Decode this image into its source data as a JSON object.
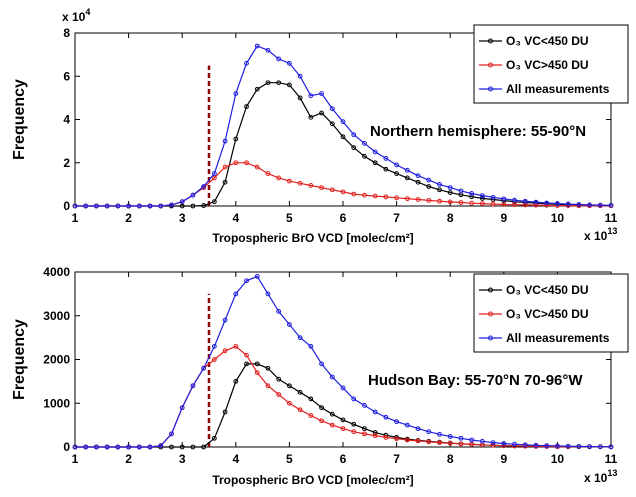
{
  "chart_data": [
    {
      "type": "line",
      "ylabel": "Frequency",
      "xlabel": "Tropospheric BrO VCD [molec/cm²]",
      "x_multiplier_label": "x 10",
      "x_multiplier_exp": "13",
      "y_multiplier_label": "x 10",
      "y_multiplier_exp": "4",
      "xlim": [
        1,
        11
      ],
      "ylim": [
        0,
        8
      ],
      "xticks": [
        1,
        2,
        3,
        4,
        5,
        6,
        7,
        8,
        9,
        10,
        11
      ],
      "yticks": [
        0,
        2,
        4,
        6,
        8
      ],
      "annotation": "Northern hemisphere: 55-90°N",
      "threshold_x": 3.5,
      "threshold_y_top": 6.5,
      "legend_position": "top-right",
      "x": [
        1.0,
        1.2,
        1.4,
        1.6,
        1.8,
        2.0,
        2.2,
        2.4,
        2.6,
        2.8,
        3.0,
        3.2,
        3.4,
        3.6,
        3.8,
        4.0,
        4.2,
        4.4,
        4.6,
        4.8,
        5.0,
        5.2,
        5.4,
        5.6,
        5.8,
        6.0,
        6.2,
        6.4,
        6.6,
        6.8,
        7.0,
        7.2,
        7.4,
        7.6,
        7.8,
        8.0,
        8.2,
        8.4,
        8.6,
        8.8,
        9.0,
        9.2,
        9.4,
        9.6,
        9.8,
        10.0,
        10.2,
        10.4,
        10.6,
        10.8,
        11.0
      ],
      "series": [
        {
          "name": "O₃ VC<450 DU",
          "color": "#000000",
          "values": [
            0,
            0,
            0,
            0,
            0,
            0,
            0,
            0,
            0,
            0,
            0,
            0,
            0.02,
            0.2,
            1.1,
            3.1,
            4.6,
            5.4,
            5.7,
            5.7,
            5.6,
            5.0,
            4.1,
            4.3,
            3.8,
            3.2,
            2.7,
            2.3,
            2.0,
            1.7,
            1.5,
            1.3,
            1.1,
            0.9,
            0.75,
            0.62,
            0.52,
            0.43,
            0.35,
            0.3,
            0.25,
            0.2,
            0.16,
            0.13,
            0.1,
            0.08,
            0.06,
            0.05,
            0.04,
            0.03,
            0.02
          ]
        },
        {
          "name": "O₃ VC>450 DU",
          "color": "#e21f1f",
          "values": [
            0,
            0,
            0,
            0,
            0,
            0,
            0,
            0,
            0,
            0.05,
            0.2,
            0.5,
            0.85,
            1.3,
            1.8,
            2.0,
            2.0,
            1.8,
            1.5,
            1.3,
            1.15,
            1.05,
            0.95,
            0.85,
            0.75,
            0.65,
            0.55,
            0.5,
            0.46,
            0.42,
            0.38,
            0.34,
            0.3,
            0.26,
            0.22,
            0.19,
            0.16,
            0.13,
            0.11,
            0.09,
            0.07,
            0.06,
            0.05,
            0.04,
            0.03,
            0.02,
            0.02,
            0.01,
            0.01,
            0.01,
            0.01
          ]
        },
        {
          "name": "All measurements",
          "color": "#1f1fe2",
          "values": [
            0,
            0,
            0,
            0,
            0,
            0,
            0,
            0,
            0,
            0.05,
            0.2,
            0.5,
            0.9,
            1.5,
            3.0,
            5.2,
            6.6,
            7.4,
            7.2,
            6.8,
            6.6,
            6.0,
            5.1,
            5.2,
            4.5,
            3.9,
            3.3,
            2.9,
            2.5,
            2.2,
            1.9,
            1.65,
            1.4,
            1.2,
            1.0,
            0.85,
            0.7,
            0.58,
            0.48,
            0.4,
            0.33,
            0.27,
            0.22,
            0.18,
            0.14,
            0.11,
            0.09,
            0.07,
            0.05,
            0.04,
            0.03
          ]
        }
      ]
    },
    {
      "type": "line",
      "ylabel": "Frequency",
      "xlabel": "Tropospheric BrO VCD [molec/cm²]",
      "x_multiplier_label": "x 10",
      "x_multiplier_exp": "13",
      "xlim": [
        1,
        11
      ],
      "ylim": [
        0,
        4000
      ],
      "xticks": [
        1,
        2,
        3,
        4,
        5,
        6,
        7,
        8,
        9,
        10,
        11
      ],
      "yticks": [
        0,
        1000,
        2000,
        3000,
        4000
      ],
      "annotation": "Hudson Bay: 55-70°N  70-96°W",
      "threshold_x": 3.5,
      "threshold_y_top": 3500,
      "legend_position": "top-right",
      "x": [
        1.0,
        1.2,
        1.4,
        1.6,
        1.8,
        2.0,
        2.2,
        2.4,
        2.6,
        2.8,
        3.0,
        3.2,
        3.4,
        3.6,
        3.8,
        4.0,
        4.2,
        4.4,
        4.6,
        4.8,
        5.0,
        5.2,
        5.4,
        5.6,
        5.8,
        6.0,
        6.2,
        6.4,
        6.6,
        6.8,
        7.0,
        7.2,
        7.4,
        7.6,
        7.8,
        8.0,
        8.2,
        8.4,
        8.6,
        8.8,
        9.0,
        9.2,
        9.4,
        9.6,
        9.8,
        10.0,
        10.2,
        10.4,
        10.6,
        10.8,
        11.0
      ],
      "series": [
        {
          "name": "O₃ VC<450 DU",
          "color": "#000000",
          "values": [
            0,
            0,
            0,
            0,
            0,
            0,
            0,
            0,
            0,
            0,
            0,
            0,
            0,
            200,
            800,
            1500,
            1900,
            1900,
            1800,
            1550,
            1400,
            1250,
            1100,
            900,
            750,
            620,
            520,
            420,
            330,
            270,
            220,
            180,
            150,
            130,
            110,
            90,
            75,
            60,
            50,
            40,
            30,
            25,
            20,
            15,
            12,
            10,
            8,
            6,
            5,
            4,
            3
          ]
        },
        {
          "name": "O₃ VC>450 DU",
          "color": "#e21f1f",
          "values": [
            0,
            0,
            0,
            0,
            0,
            0,
            0,
            0,
            30,
            300,
            900,
            1400,
            1800,
            2000,
            2200,
            2300,
            2100,
            1700,
            1400,
            1200,
            1000,
            850,
            720,
            600,
            500,
            420,
            350,
            300,
            260,
            220,
            190,
            160,
            140,
            120,
            100,
            85,
            70,
            60,
            50,
            40,
            30,
            25,
            20,
            15,
            12,
            10,
            8,
            6,
            5,
            4,
            3
          ]
        },
        {
          "name": "All measurements",
          "color": "#1f1fe2",
          "values": [
            0,
            0,
            0,
            0,
            0,
            0,
            0,
            0,
            30,
            300,
            900,
            1400,
            1800,
            2300,
            2900,
            3500,
            3800,
            3900,
            3500,
            3100,
            2800,
            2500,
            2300,
            1900,
            1600,
            1350,
            1100,
            950,
            800,
            680,
            580,
            500,
            420,
            350,
            290,
            240,
            200,
            160,
            130,
            100,
            80,
            65,
            50,
            40,
            30,
            24,
            18,
            13,
            10,
            7,
            5
          ]
        }
      ]
    }
  ]
}
